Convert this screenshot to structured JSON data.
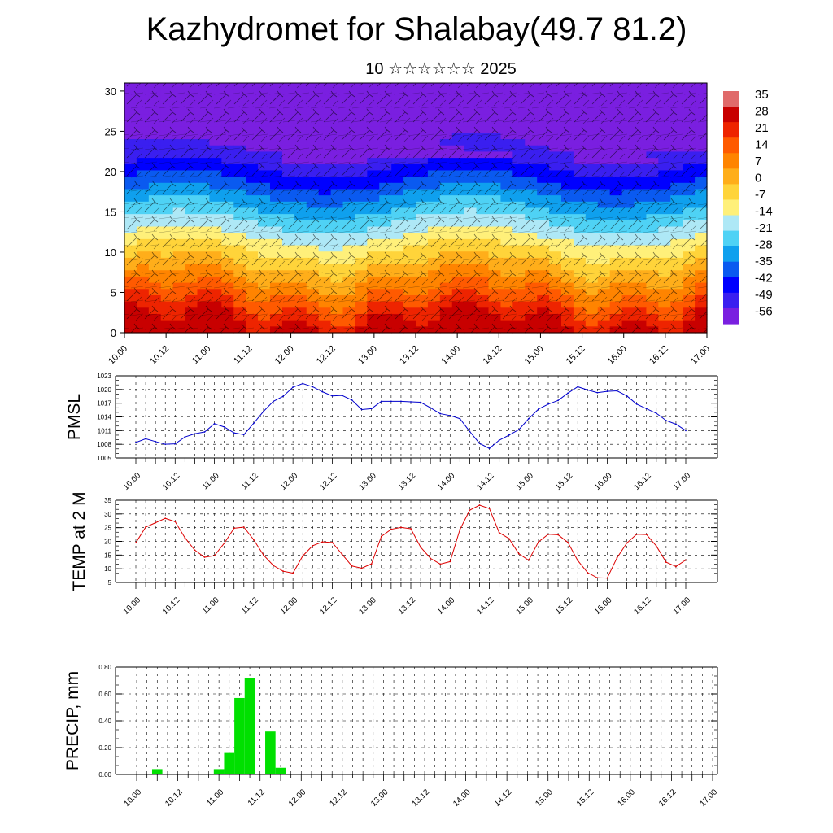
{
  "title": "Kazhydromet for Shalabay(49.7 81.2)",
  "subtitle": "10 ☆☆☆☆☆☆ 2025",
  "colors": {
    "pmsl_line": "#0000cc",
    "temp_line": "#dd0000",
    "precip_bar": "#00e000"
  },
  "chart_data": [
    {
      "type": "heatmap",
      "name": "cross-section",
      "x_labels": [
        "10.00",
        "10.12",
        "11.00",
        "11.12",
        "12.00",
        "12.12",
        "13.00",
        "13.12",
        "14.00",
        "14.12",
        "15.00",
        "15.12",
        "16.00",
        "16.12",
        "17.00"
      ],
      "y_ticks": [
        0,
        5,
        10,
        15,
        20,
        25,
        30
      ],
      "ylim": [
        0,
        31
      ],
      "colorbar": [
        "35",
        "28",
        "21",
        "14",
        "7",
        "0",
        "-7",
        "-14",
        "-21",
        "-28",
        "-35",
        "-42",
        "-49",
        "-56"
      ],
      "colorscale": [
        "#7a1fe0",
        "#3a1ff0",
        "#0000ff",
        "#0a5af0",
        "#0fa0ee",
        "#4fd2f5",
        "#aee8f6",
        "#fff07a",
        "#ffd43a",
        "#ffae1a",
        "#ff8400",
        "#ff5a00",
        "#ee2400",
        "#c80000",
        "#e06a6a"
      ]
    },
    {
      "type": "line",
      "name": "pmsl",
      "ylabel": "PMSL",
      "ylim": [
        1005,
        1023
      ],
      "y_ticks": [
        1005,
        1008,
        1011,
        1014,
        1017,
        1020,
        1023
      ],
      "x_labels": [
        "10.00",
        "10.12",
        "11.00",
        "11.12",
        "12.00",
        "12.12",
        "13.00",
        "13.12",
        "14.00",
        "14.12",
        "15.00",
        "15.12",
        "16.00",
        "16.12",
        "17.00"
      ],
      "values": [
        1008.4,
        1009.2,
        1008.6,
        1008.0,
        1008.1,
        1009.6,
        1010.3,
        1010.7,
        1012.5,
        1011.8,
        1010.5,
        1010.1,
        1012.6,
        1015.2,
        1017.4,
        1018.5,
        1020.5,
        1021.3,
        1020.6,
        1019.5,
        1018.6,
        1018.7,
        1017.7,
        1015.6,
        1015.8,
        1017.4,
        1017.4,
        1017.4,
        1017.3,
        1017.2,
        1016.0,
        1014.7,
        1014.3,
        1013.6,
        1010.8,
        1008.2,
        1007.1,
        1008.9,
        1010.0,
        1011.2,
        1013.6,
        1015.7,
        1016.8,
        1017.6,
        1019.2,
        1020.6,
        1019.9,
        1019.3,
        1019.6,
        1019.7,
        1018.6,
        1016.8,
        1015.8,
        1014.8,
        1013.2,
        1012.4,
        1011.0
      ]
    },
    {
      "type": "line",
      "name": "temp",
      "ylabel": "TEMP at 2 M",
      "ylim": [
        5,
        35
      ],
      "y_ticks": [
        5,
        10,
        15,
        20,
        25,
        30,
        35
      ],
      "x_labels": [
        "10.00",
        "10.12",
        "11.00",
        "11.12",
        "12.00",
        "12.12",
        "13.00",
        "13.12",
        "14.00",
        "14.12",
        "15.00",
        "15.12",
        "16.00",
        "16.12",
        "17.00"
      ],
      "values": [
        19.5,
        25.2,
        26.8,
        28.4,
        27.2,
        21.3,
        16.8,
        14.2,
        14.8,
        19.3,
        24.8,
        25.2,
        20.6,
        15.0,
        11.2,
        9.1,
        8.4,
        14.7,
        18.4,
        19.8,
        19.6,
        15.3,
        11.0,
        10.2,
        11.8,
        21.8,
        24.4,
        25.1,
        24.6,
        17.9,
        13.8,
        11.7,
        12.6,
        24.3,
        31.4,
        33.2,
        32.0,
        23.2,
        21.0,
        15.5,
        13.1,
        19.8,
        22.6,
        22.4,
        19.6,
        13.0,
        8.6,
        6.7,
        6.6,
        14.0,
        19.4,
        22.6,
        22.5,
        18.3,
        12.4,
        10.8,
        13.2
      ]
    },
    {
      "type": "bar",
      "name": "precip",
      "ylabel": "PRECIP, mm",
      "ylim": [
        0,
        0.8
      ],
      "y_ticks": [
        "0.00",
        "0.20",
        "0.40",
        "0.60",
        "0.80"
      ],
      "x_labels": [
        "10.00",
        "10.12",
        "11.00",
        "11.12",
        "12.00",
        "12.12",
        "13.00",
        "13.12",
        "14.00",
        "14.12",
        "15.00",
        "15.12",
        "16.00",
        "16.12",
        "17.00"
      ],
      "values": [
        0,
        0,
        0.04,
        0,
        0,
        0,
        0,
        0,
        0.04,
        0.16,
        0.57,
        0.72,
        0,
        0.32,
        0.05,
        0,
        0,
        0,
        0,
        0,
        0,
        0,
        0,
        0,
        0,
        0,
        0,
        0,
        0,
        0,
        0,
        0,
        0,
        0,
        0,
        0,
        0,
        0,
        0,
        0,
        0,
        0,
        0,
        0,
        0,
        0,
        0,
        0,
        0,
        0,
        0,
        0,
        0,
        0,
        0,
        0,
        0
      ]
    }
  ]
}
